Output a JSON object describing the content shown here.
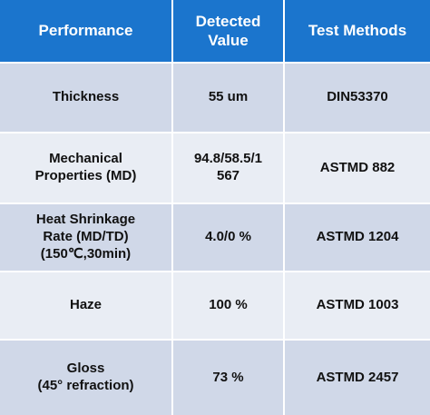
{
  "table": {
    "header": [
      [
        "Performance"
      ],
      [
        "Detected",
        "Value"
      ],
      [
        "Test Methods"
      ]
    ],
    "rows": [
      [
        [
          "Thickness"
        ],
        [
          "55 um"
        ],
        [
          "DIN53370"
        ]
      ],
      [
        [
          "Mechanical",
          "Properties (MD)"
        ],
        [
          "94.8/58.5/1",
          "567"
        ],
        [
          "ASTMD 882"
        ]
      ],
      [
        [
          "Heat Shrinkage",
          "Rate (MD/TD)",
          "(150℃,30min)"
        ],
        [
          "4.0/0 %"
        ],
        [
          "ASTMD 1204"
        ]
      ],
      [
        [
          "Haze"
        ],
        [
          "100 %"
        ],
        [
          "ASTMD 1003"
        ]
      ],
      [
        [
          "Gloss",
          "(45° refraction)"
        ],
        [
          "73 %"
        ],
        [
          "ASTMD 2457"
        ]
      ]
    ]
  }
}
